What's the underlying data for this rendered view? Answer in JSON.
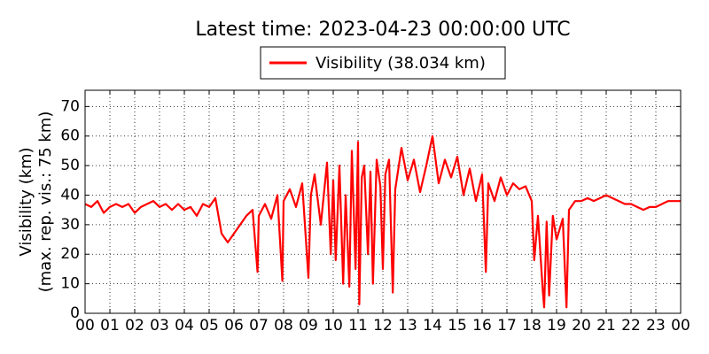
{
  "chart_data": {
    "type": "line",
    "title": "Latest time: 2023-04-23 00:00:00 UTC",
    "y_label": [
      "Visibility (km)",
      "(max. rep. vis.: 75 km)"
    ],
    "xlim": [
      0,
      24
    ],
    "ylim": [
      0,
      75.5
    ],
    "xticks": [
      {
        "value": 0,
        "label": "00"
      },
      {
        "value": 1,
        "label": "01"
      },
      {
        "value": 2,
        "label": "02"
      },
      {
        "value": 3,
        "label": "03"
      },
      {
        "value": 4,
        "label": "04"
      },
      {
        "value": 5,
        "label": "05"
      },
      {
        "value": 6,
        "label": "06"
      },
      {
        "value": 7,
        "label": "07"
      },
      {
        "value": 8,
        "label": "08"
      },
      {
        "value": 9,
        "label": "09"
      },
      {
        "value": 10,
        "label": "10"
      },
      {
        "value": 11,
        "label": "11"
      },
      {
        "value": 12,
        "label": "12"
      },
      {
        "value": 13,
        "label": "13"
      },
      {
        "value": 14,
        "label": "14"
      },
      {
        "value": 15,
        "label": "15"
      },
      {
        "value": 16,
        "label": "16"
      },
      {
        "value": 17,
        "label": "17"
      },
      {
        "value": 18,
        "label": "18"
      },
      {
        "value": 19,
        "label": "19"
      },
      {
        "value": 20,
        "label": "20"
      },
      {
        "value": 21,
        "label": "21"
      },
      {
        "value": 22,
        "label": "22"
      },
      {
        "value": 23,
        "label": "23"
      },
      {
        "value": 24,
        "label": "00"
      }
    ],
    "yticks": [
      0,
      10,
      20,
      30,
      40,
      50,
      60,
      70
    ],
    "grid": true,
    "legend": "top",
    "x": [
      0,
      0.25,
      0.5,
      0.75,
      1,
      1.25,
      1.5,
      1.75,
      2,
      2.25,
      2.5,
      2.75,
      3,
      3.25,
      3.5,
      3.75,
      4,
      4.25,
      4.5,
      4.75,
      5,
      5.25,
      5.5,
      5.75,
      6,
      6.25,
      6.5,
      6.75,
      6.95,
      7,
      7.25,
      7.5,
      7.75,
      7.95,
      8,
      8.25,
      8.5,
      8.75,
      9,
      9.1,
      9.25,
      9.5,
      9.75,
      9.9,
      10,
      10.1,
      10.25,
      10.4,
      10.5,
      10.65,
      10.75,
      10.9,
      11,
      11.05,
      11.15,
      11.25,
      11.4,
      11.5,
      11.6,
      11.75,
      11.9,
      12,
      12.1,
      12.25,
      12.4,
      12.5,
      12.75,
      13,
      13.25,
      13.5,
      13.75,
      14,
      14.25,
      14.5,
      14.75,
      15,
      15.25,
      15.5,
      15.75,
      16,
      16.15,
      16.25,
      16.5,
      16.75,
      17,
      17.25,
      17.5,
      17.75,
      18,
      18.1,
      18.25,
      18.45,
      18.5,
      18.6,
      18.7,
      18.85,
      19,
      19.25,
      19.4,
      19.5,
      19.75,
      20,
      20.25,
      20.5,
      20.75,
      21,
      21.25,
      21.5,
      21.75,
      22,
      22.25,
      22.5,
      22.75,
      23,
      23.25,
      23.5,
      23.75,
      24
    ],
    "series": [
      {
        "name": "Visibility (38.034 km)",
        "color": "#ff0000",
        "values": [
          37,
          36,
          38,
          34,
          36,
          37,
          36,
          37,
          34,
          36,
          37,
          38,
          36,
          37,
          35,
          37,
          35,
          36,
          33,
          37,
          36,
          39,
          27,
          24,
          27,
          30,
          33,
          35,
          14,
          33,
          37,
          32,
          40,
          11,
          38,
          42,
          36,
          44,
          12,
          40,
          47,
          30,
          51,
          20,
          45,
          18,
          50,
          10,
          40,
          9,
          55,
          15,
          58,
          3,
          46,
          50,
          20,
          48,
          10,
          52,
          43,
          15,
          47,
          52,
          7,
          42,
          56,
          45,
          52,
          41,
          50,
          60,
          44,
          52,
          46,
          53,
          40,
          49,
          38,
          47,
          14,
          44,
          38,
          46,
          40,
          44,
          42,
          43,
          38,
          18,
          33,
          7,
          2,
          31,
          6,
          33,
          25,
          32,
          2,
          35,
          38,
          38,
          39,
          38,
          39,
          40,
          39,
          38,
          37,
          37,
          36,
          35,
          36,
          36,
          37,
          38,
          38,
          38
        ]
      }
    ]
  }
}
